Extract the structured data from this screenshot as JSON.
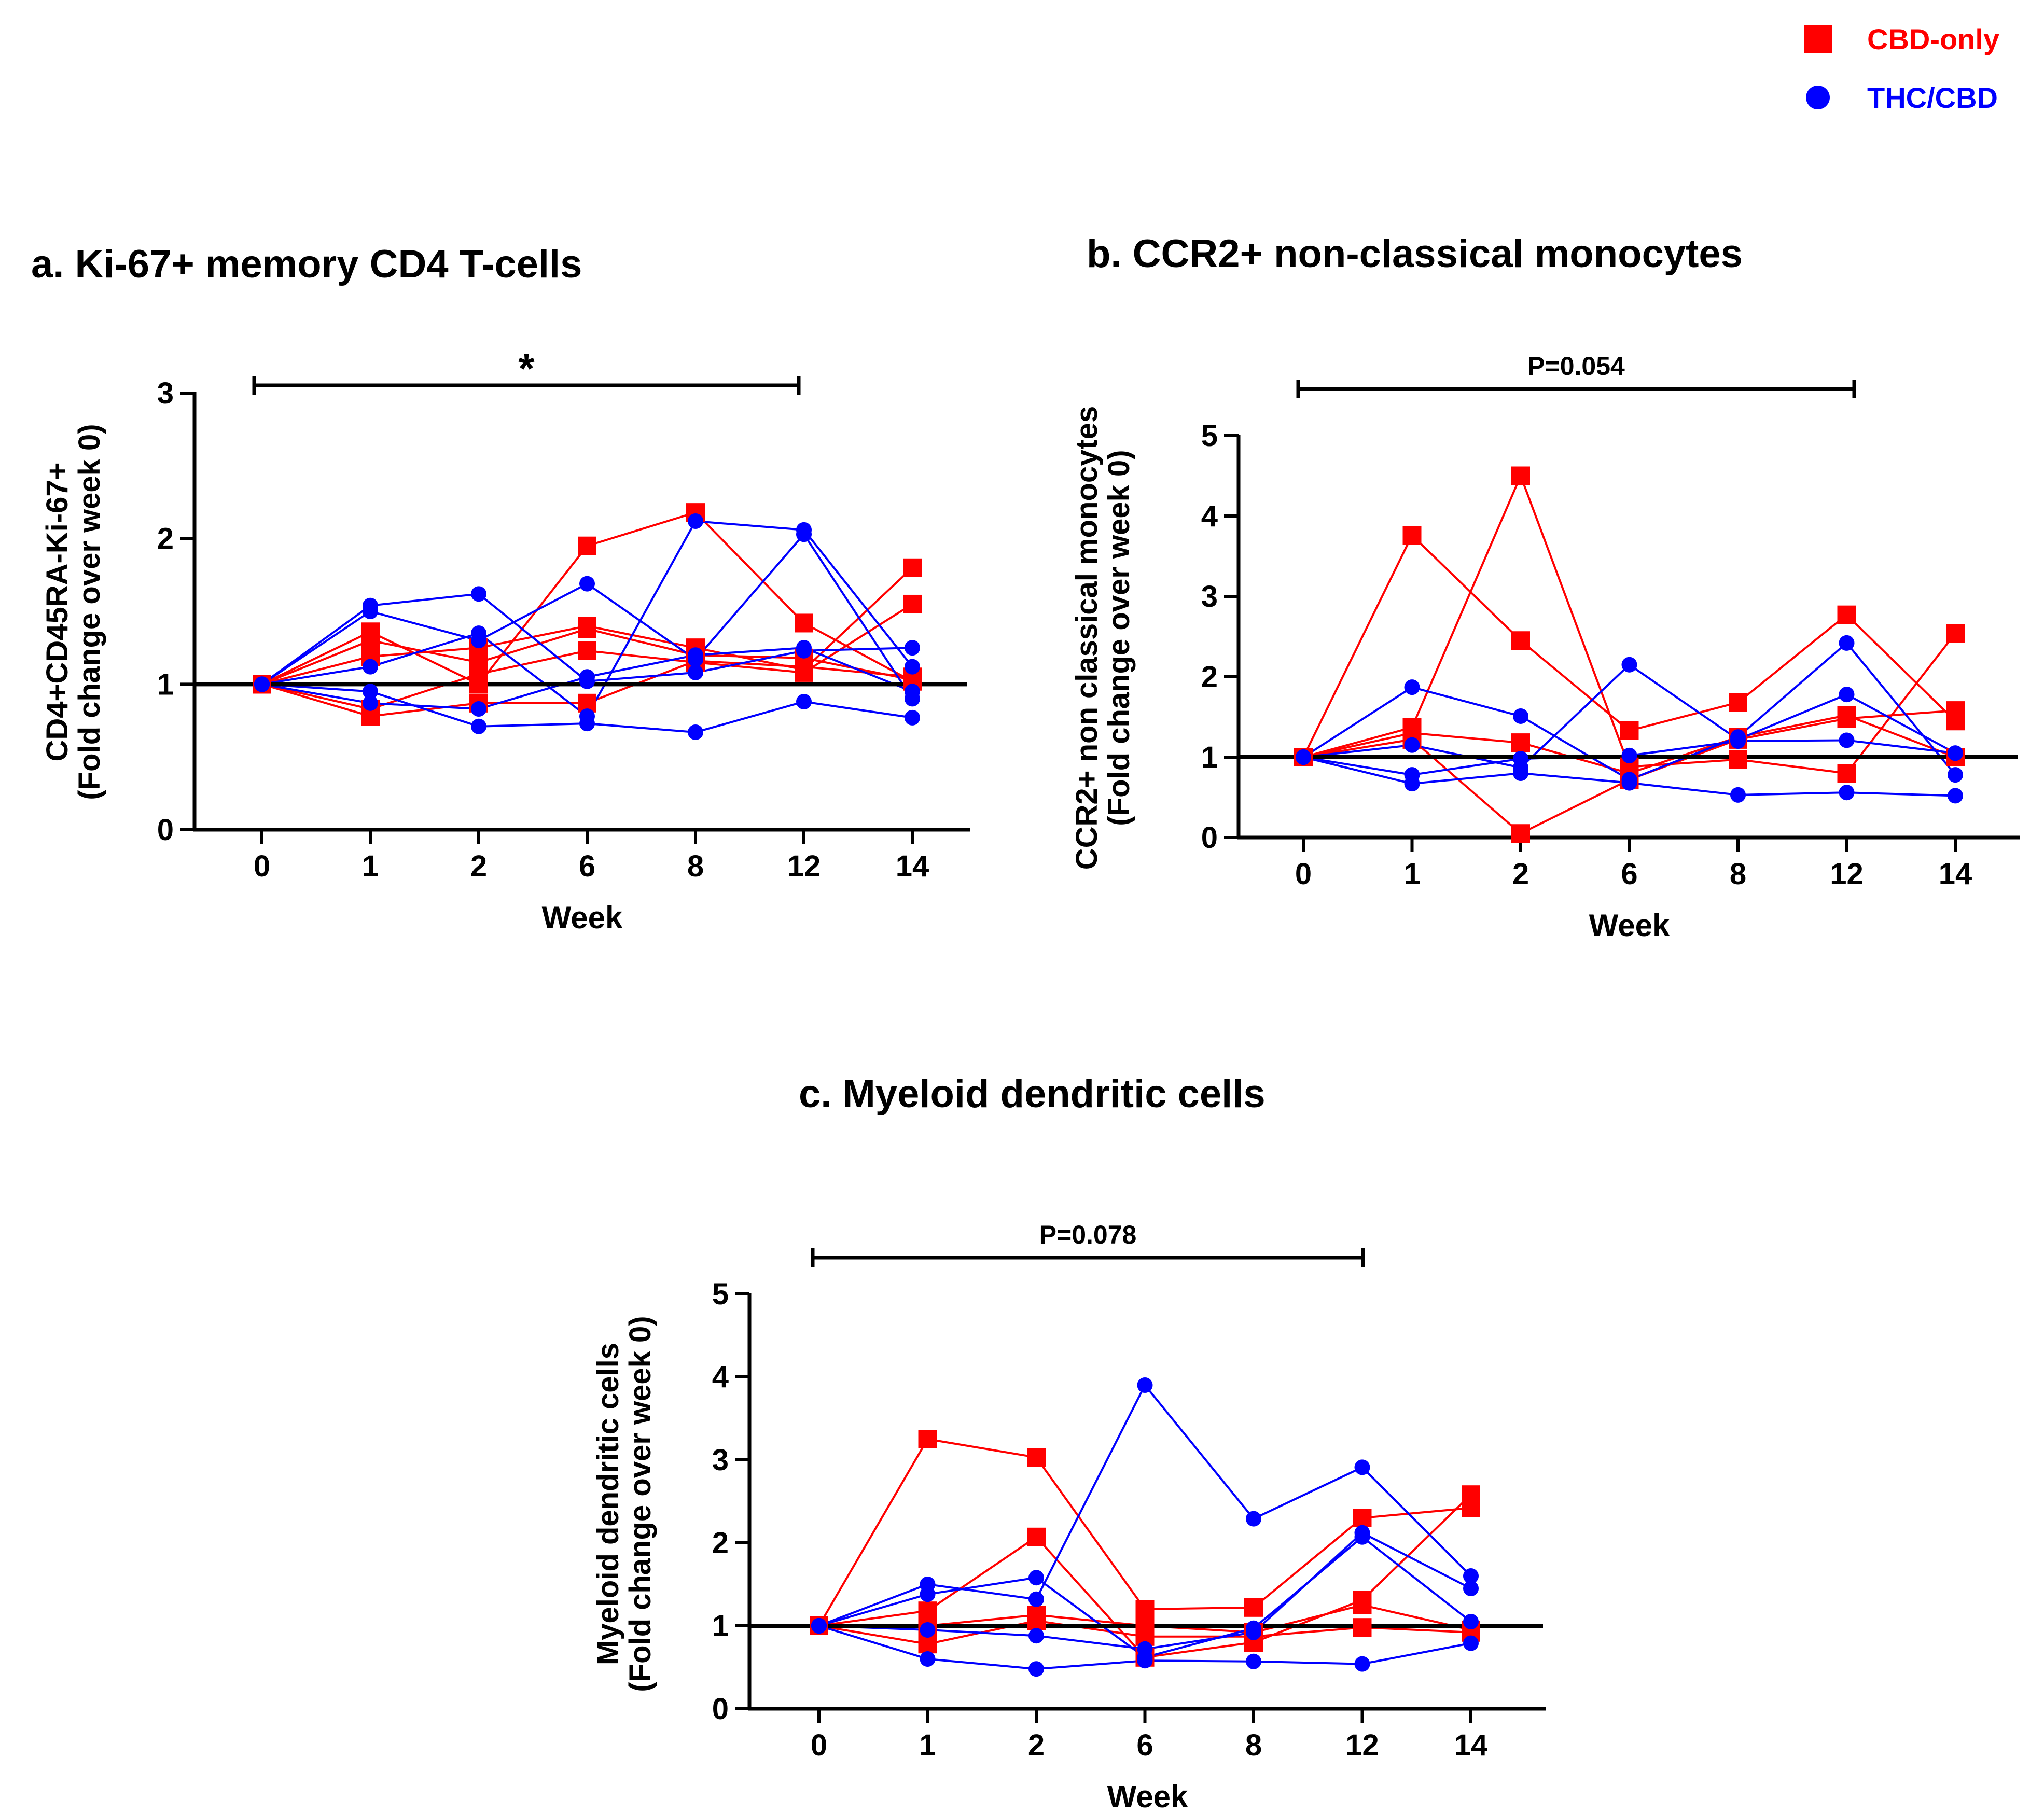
{
  "legend": [
    {
      "label": "CBD-only",
      "color": "#ff0000",
      "marker": "square"
    },
    {
      "label": "THC/CBD",
      "color": "#0000ff",
      "marker": "circle"
    }
  ],
  "chart_data": [
    {
      "type": "line",
      "title": "a. Ki-67+ memory CD4 T-cells",
      "xlabel": "Week",
      "ylabel": [
        "CD4+CD45RA-Ki-67+",
        "(Fold change over week 0)"
      ],
      "categories": [
        "0",
        "1",
        "2",
        "6",
        "8",
        "12",
        "14"
      ],
      "ylim": [
        0,
        3
      ],
      "yticks": [
        0,
        1,
        2,
        3
      ],
      "reference_line": 1,
      "significance": {
        "label": "*",
        "from": "0",
        "to": "12"
      },
      "series": [
        {
          "name": "CBD-only",
          "values": [
            1,
            1.36,
            1.0,
            1.95,
            2.18,
            1.42,
            1.02
          ]
        },
        {
          "name": "CBD-only",
          "values": [
            1,
            1.19,
            1.25,
            1.4,
            1.25,
            1.1,
            1.8
          ]
        },
        {
          "name": "CBD-only",
          "values": [
            1,
            0.83,
            1.07,
            1.23,
            1.15,
            1.08,
            1.55
          ]
        },
        {
          "name": "CBD-only",
          "values": [
            1,
            0.78,
            0.87,
            0.87,
            1.16,
            1.12,
            1.05
          ]
        },
        {
          "name": "CBD-only",
          "values": [
            1,
            1.3,
            1.15,
            1.38,
            1.2,
            1.18,
            1.03
          ]
        },
        {
          "name": "THC/CBD",
          "values": [
            1,
            1.54,
            1.62,
            1.02,
            1.08,
            1.23,
            1.25
          ]
        },
        {
          "name": "THC/CBD",
          "values": [
            1,
            1.5,
            1.3,
            1.69,
            1.17,
            2.03,
            0.9
          ]
        },
        {
          "name": "THC/CBD",
          "values": [
            1,
            1.12,
            1.35,
            0.78,
            2.12,
            2.06,
            1.12
          ]
        },
        {
          "name": "THC/CBD",
          "values": [
            1,
            0.95,
            0.71,
            0.73,
            0.67,
            0.88,
            0.77
          ]
        },
        {
          "name": "THC/CBD",
          "values": [
            1,
            0.87,
            0.83,
            1.05,
            1.2,
            1.25,
            0.95
          ]
        }
      ]
    },
    {
      "type": "line",
      "title": "b. CCR2+ non-classical  monocytes",
      "xlabel": "Week",
      "ylabel": [
        "CCR2+ non classical monocytes",
        "(Fold change over week 0)"
      ],
      "categories": [
        "0",
        "1",
        "2",
        "6",
        "8",
        "12",
        "14"
      ],
      "ylim": [
        0,
        5
      ],
      "yticks": [
        0,
        1,
        2,
        3,
        4,
        5
      ],
      "reference_line": 1,
      "significance": {
        "label": "P=0.054",
        "from": "0",
        "to": "12"
      },
      "series": [
        {
          "name": "CBD-only",
          "values": [
            1,
            3.76,
            2.45,
            1.33,
            1.68,
            2.77,
            1.45
          ]
        },
        {
          "name": "CBD-only",
          "values": [
            1,
            1.37,
            4.5,
            0.88,
            0.97,
            0.8,
            2.54
          ]
        },
        {
          "name": "CBD-only",
          "values": [
            1,
            1.22,
            0.05,
            0.72,
            1.22,
            1.48,
            1.58
          ]
        },
        {
          "name": "CBD-only",
          "values": [
            1,
            1.3,
            1.18,
            0.8,
            1.25,
            1.52,
            1.0
          ]
        },
        {
          "name": "THC/CBD",
          "values": [
            1,
            1.87,
            1.51,
            0.72,
            1.25,
            2.42,
            0.78
          ]
        },
        {
          "name": "THC/CBD",
          "values": [
            1,
            1.15,
            0.87,
            2.15,
            1.22,
            1.78,
            1.05
          ]
        },
        {
          "name": "THC/CBD",
          "values": [
            1,
            0.67,
            0.8,
            0.68,
            0.53,
            0.56,
            0.52
          ]
        },
        {
          "name": "THC/CBD",
          "values": [
            1,
            0.78,
            0.98,
            1.02,
            1.2,
            1.21,
            1.05
          ]
        }
      ]
    },
    {
      "type": "line",
      "title": "c. Myeloid dendritic cells",
      "xlabel": "Week",
      "ylabel": [
        "Myeloid dendritic cells",
        "(Fold change over week 0)"
      ],
      "categories": [
        "0",
        "1",
        "2",
        "6",
        "8",
        "12",
        "14"
      ],
      "ylim": [
        0,
        5
      ],
      "yticks": [
        0,
        1,
        2,
        3,
        4,
        5
      ],
      "reference_line": 1,
      "significance": {
        "label": "P=0.078",
        "from": "0",
        "to": "12"
      },
      "series": [
        {
          "name": "CBD-only",
          "values": [
            1,
            3.25,
            3.03,
            1.2,
            1.22,
            2.3,
            2.42
          ]
        },
        {
          "name": "CBD-only",
          "values": [
            1,
            1.18,
            2.07,
            0.62,
            0.8,
            1.31,
            2.58
          ]
        },
        {
          "name": "CBD-only",
          "values": [
            1,
            0.78,
            1.06,
            0.87,
            0.87,
            0.98,
            0.92
          ]
        },
        {
          "name": "CBD-only",
          "values": [
            1,
            1.0,
            1.13,
            1.0,
            0.92,
            1.25,
            0.95
          ]
        },
        {
          "name": "THC/CBD",
          "values": [
            1,
            1.5,
            1.32,
            3.9,
            2.29,
            2.91,
            1.6
          ]
        },
        {
          "name": "THC/CBD",
          "values": [
            1,
            1.38,
            1.58,
            0.62,
            0.97,
            2.07,
            1.05
          ]
        },
        {
          "name": "THC/CBD",
          "values": [
            1,
            0.6,
            0.48,
            0.58,
            0.57,
            0.54,
            0.79
          ]
        },
        {
          "name": "THC/CBD",
          "values": [
            1,
            0.95,
            0.88,
            0.72,
            0.92,
            2.12,
            1.45
          ]
        }
      ]
    }
  ]
}
